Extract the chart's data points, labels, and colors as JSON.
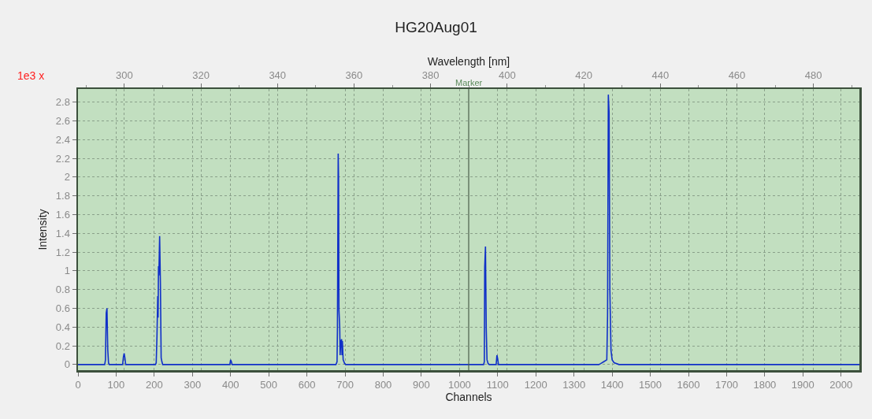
{
  "chart_data": {
    "type": "line",
    "title": "HG20Aug01",
    "xlabel": "Channels",
    "ylabel": "Intensity",
    "x2label": "Wavelength [nm]",
    "annotations": [
      "1e3 x"
    ],
    "x": [
      0,
      70,
      72,
      74,
      76,
      78,
      80,
      82,
      117,
      119,
      121,
      123,
      125,
      203,
      205,
      207,
      209,
      210,
      211,
      212,
      214,
      216,
      218,
      220,
      222,
      398,
      400,
      402,
      404,
      676,
      679,
      680,
      682,
      683,
      684,
      686,
      687,
      689,
      691,
      692,
      693,
      695,
      699,
      702,
      1063,
      1065,
      1066,
      1068,
      1070,
      1072,
      1075,
      1078,
      1096,
      1098,
      1100,
      1102,
      1365,
      1370,
      1378,
      1386,
      1388,
      1390,
      1392,
      1394,
      1397,
      1400,
      1405,
      1418,
      2048
    ],
    "series": [
      {
        "color": "#1030c8",
        "values": [
          0,
          0,
          0.05,
          0.55,
          0.6,
          0.16,
          0.02,
          0,
          0,
          0.08,
          0.12,
          0.07,
          0,
          0,
          0.02,
          0.3,
          0.73,
          0.5,
          1.05,
          0.95,
          1.37,
          0.87,
          0.07,
          0.03,
          0,
          0,
          0.05,
          0.03,
          0,
          0,
          0.03,
          0.38,
          2.25,
          1.99,
          0.58,
          0.4,
          0.1,
          0.25,
          0.27,
          0.1,
          0.25,
          0.05,
          0.01,
          0,
          0,
          0.03,
          1.04,
          1.26,
          0.38,
          0.05,
          0.01,
          0,
          0,
          0.1,
          0.06,
          0,
          0,
          0.01,
          0.03,
          0.05,
          0.52,
          2.88,
          2.69,
          0.79,
          0.15,
          0.05,
          0.02,
          0,
          0
        ]
      }
    ],
    "xlim": [
      0,
      2048
    ],
    "xticks": [
      0,
      100,
      200,
      300,
      400,
      500,
      600,
      700,
      800,
      900,
      1000,
      1100,
      1200,
      1300,
      1400,
      1500,
      1600,
      1700,
      1800,
      1900,
      2000
    ],
    "x2lim": [
      287.9,
      492
    ],
    "x2ticks": [
      300,
      320,
      340,
      360,
      380,
      400,
      420,
      440,
      460,
      480
    ],
    "ylim": [
      -0.06,
      2.94
    ],
    "yticks": [
      0,
      0.2,
      0.4,
      0.6,
      0.8,
      1,
      1.2,
      1.4,
      1.6,
      1.8,
      2,
      2.2,
      2.4,
      2.6,
      2.8
    ],
    "ref_lines": [
      {
        "axis": "x",
        "value": 1024,
        "label": "Marker",
        "color": "#4a5e4a"
      }
    ],
    "grid": true,
    "line_style": "solid",
    "marker": "none"
  }
}
